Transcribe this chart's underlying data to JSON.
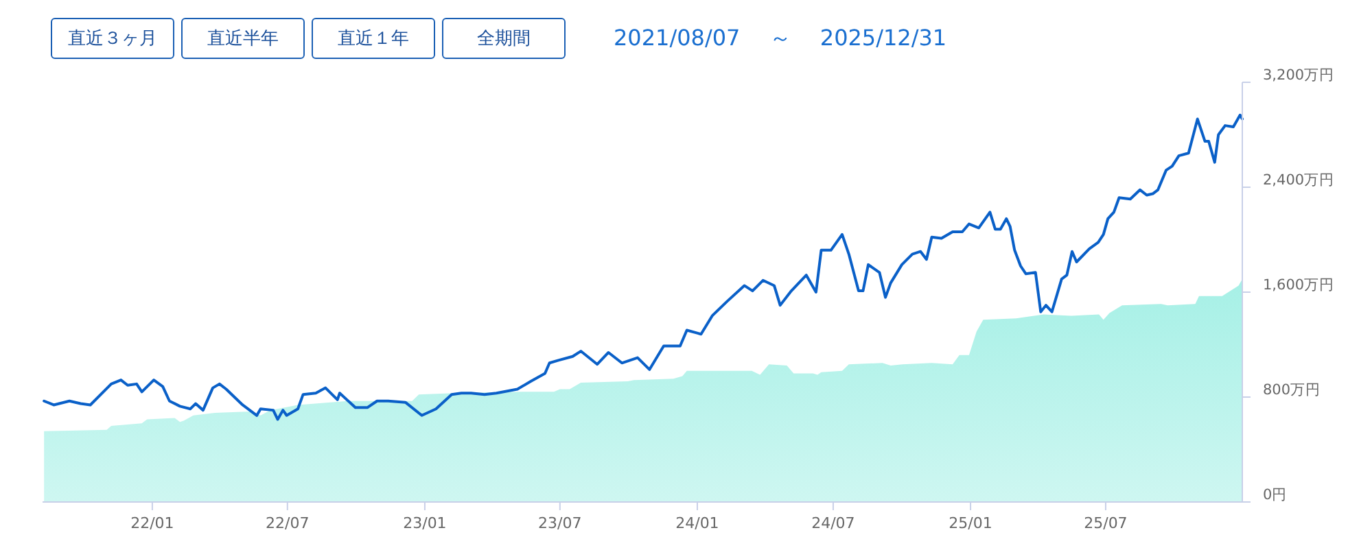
{
  "chart_data": {
    "type": "line",
    "subtitle": "2021/08/07　 ～ 　2025/12/31",
    "annotations": [
      "直近３ヶ月",
      "直近半年",
      "直近１年",
      "全期間"
    ],
    "xlim": [
      "2021-08-07",
      "2025-12-31"
    ],
    "xticks": [
      {
        "value": "2022-01",
        "label": "22/01"
      },
      {
        "value": "2022-07",
        "label": "22/07"
      },
      {
        "value": "2023-01",
        "label": "23/01"
      },
      {
        "value": "2023-07",
        "label": "23/07"
      },
      {
        "value": "2024-01",
        "label": "24/01"
      },
      {
        "value": "2024-07",
        "label": "24/07"
      },
      {
        "value": "2025-01",
        "label": "25/01"
      },
      {
        "value": "2025-07",
        "label": "25/07"
      }
    ],
    "ylim": [
      0,
      3200
    ],
    "yticks": [
      {
        "value": 0,
        "label": "0円"
      },
      {
        "value": 800,
        "label": "800万円"
      },
      {
        "value": 1600,
        "label": "1,600万円"
      },
      {
        "value": 2400,
        "label": "2,400万円"
      },
      {
        "value": 3200,
        "label": "3,200万円"
      }
    ],
    "grid": false,
    "series": [
      {
        "type": "area",
        "color": "#a6f0e6",
        "x": [
          "2021-08-09",
          "2021-11-01",
          "2021-11-07",
          "2021-12-18",
          "2021-12-25",
          "2022-01-31",
          "2022-02-07",
          "2022-02-12",
          "2022-02-25",
          "2022-03-26",
          "2022-05-13",
          "2022-05-26",
          "2022-06-08",
          "2022-07-15",
          "2022-09-20",
          "2022-12-15",
          "2022-12-24",
          "2023-02-09",
          "2023-05-11",
          "2023-06-23",
          "2023-07-01",
          "2023-07-14",
          "2023-07-29",
          "2023-09-30",
          "2023-10-08",
          "2023-11-30",
          "2023-12-12",
          "2023-12-18",
          "2024-03-14",
          "2024-03-25",
          "2024-04-06",
          "2024-04-30",
          "2024-05-09",
          "2024-06-04",
          "2024-06-10",
          "2024-06-15",
          "2024-07-13",
          "2024-07-22",
          "2024-09-05",
          "2024-09-16",
          "2024-10-02",
          "2024-11-10",
          "2024-12-08",
          "2024-12-17",
          "2024-12-30",
          "2025-01-09",
          "2025-01-18",
          "2025-03-03",
          "2025-04-09",
          "2025-05-16",
          "2025-06-22",
          "2025-06-28",
          "2025-07-06",
          "2025-07-23",
          "2025-09-13",
          "2025-09-22",
          "2025-10-29",
          "2025-11-03",
          "2025-12-04",
          "2025-12-26",
          "2025-12-31"
        ],
        "values": [
          540,
          550,
          580,
          600,
          630,
          640,
          610,
          620,
          660,
          680,
          690,
          660,
          700,
          740,
          770,
          770,
          820,
          830,
          840,
          840,
          860,
          860,
          910,
          920,
          930,
          940,
          960,
          1000,
          1000,
          970,
          1050,
          1040,
          980,
          980,
          970,
          990,
          1000,
          1050,
          1060,
          1040,
          1050,
          1060,
          1050,
          1120,
          1120,
          1300,
          1390,
          1400,
          1430,
          1420,
          1430,
          1390,
          1440,
          1500,
          1510,
          1500,
          1510,
          1570,
          1570,
          1650,
          1700
        ]
      },
      {
        "color": "#0a60c8",
        "x": [
          "2021-08-09",
          "2021-08-22",
          "2021-09-12",
          "2021-09-27",
          "2021-10-10",
          "2021-11-07",
          "2021-11-20",
          "2021-11-29",
          "2021-12-11",
          "2021-12-18",
          "2022-01-03",
          "2022-01-15",
          "2022-01-24",
          "2022-02-07",
          "2022-02-21",
          "2022-02-28",
          "2022-03-10",
          "2022-03-23",
          "2022-04-01",
          "2022-04-10",
          "2022-05-02",
          "2022-05-21",
          "2022-05-26",
          "2022-06-12",
          "2022-06-18",
          "2022-06-25",
          "2022-06-30",
          "2022-07-15",
          "2022-07-22",
          "2022-08-08",
          "2022-08-21",
          "2022-09-06",
          "2022-09-09",
          "2022-09-30",
          "2022-10-16",
          "2022-10-29",
          "2022-11-13",
          "2022-12-06",
          "2022-12-28",
          "2023-01-16",
          "2023-02-06",
          "2023-02-19",
          "2023-03-04",
          "2023-03-22",
          "2023-04-07",
          "2023-05-05",
          "2023-05-23",
          "2023-06-11",
          "2023-06-17",
          "2023-06-29",
          "2023-07-18",
          "2023-07-29",
          "2023-08-20",
          "2023-09-04",
          "2023-09-22",
          "2023-10-13",
          "2023-10-29",
          "2023-11-17",
          "2023-12-09",
          "2023-12-18",
          "2024-01-06",
          "2024-01-21",
          "2024-02-10",
          "2024-03-04",
          "2024-03-15",
          "2024-03-29",
          "2024-04-13",
          "2024-04-21",
          "2024-05-06",
          "2024-05-26",
          "2024-06-08",
          "2024-06-15",
          "2024-06-28",
          "2024-07-13",
          "2024-07-22",
          "2024-08-04",
          "2024-08-10",
          "2024-08-17",
          "2024-09-01",
          "2024-09-09",
          "2024-09-16",
          "2024-10-01",
          "2024-10-15",
          "2024-10-26",
          "2024-11-03",
          "2024-11-10",
          "2024-11-23",
          "2024-12-08",
          "2024-12-21",
          "2024-12-30",
          "2025-01-12",
          "2025-01-27",
          "2025-02-03",
          "2025-02-10",
          "2025-02-18",
          "2025-02-23",
          "2025-03-01",
          "2025-03-09",
          "2025-03-16",
          "2025-03-29",
          "2025-04-05",
          "2025-04-12",
          "2025-04-20",
          "2025-05-03",
          "2025-05-10",
          "2025-05-17",
          "2025-05-23",
          "2025-06-09",
          "2025-06-21",
          "2025-06-28",
          "2025-07-04",
          "2025-07-12",
          "2025-07-19",
          "2025-08-03",
          "2025-08-16",
          "2025-08-25",
          "2025-09-02",
          "2025-09-09",
          "2025-09-20",
          "2025-09-28",
          "2025-10-07",
          "2025-10-20",
          "2025-11-01",
          "2025-11-11",
          "2025-11-16",
          "2025-11-24",
          "2025-11-29",
          "2025-12-08",
          "2025-12-19",
          "2025-12-28",
          "2025-12-31"
        ],
        "values": [
          770,
          740,
          770,
          750,
          740,
          900,
          930,
          890,
          900,
          840,
          930,
          880,
          770,
          730,
          710,
          750,
          700,
          870,
          900,
          860,
          740,
          660,
          710,
          700,
          630,
          700,
          660,
          710,
          820,
          830,
          870,
          780,
          830,
          720,
          720,
          770,
          770,
          760,
          660,
          710,
          820,
          830,
          830,
          820,
          830,
          860,
          920,
          980,
          1060,
          1080,
          1110,
          1150,
          1050,
          1140,
          1060,
          1100,
          1010,
          1190,
          1190,
          1310,
          1280,
          1420,
          1530,
          1650,
          1610,
          1690,
          1650,
          1500,
          1610,
          1730,
          1600,
          1920,
          1920,
          2040,
          1890,
          1610,
          1610,
          1810,
          1750,
          1560,
          1670,
          1810,
          1890,
          1910,
          1850,
          2020,
          2010,
          2060,
          2060,
          2120,
          2090,
          2210,
          2080,
          2080,
          2160,
          2100,
          1920,
          1800,
          1740,
          1750,
          1450,
          1500,
          1450,
          1700,
          1730,
          1910,
          1830,
          1930,
          1980,
          2040,
          2160,
          2210,
          2320,
          2310,
          2380,
          2340,
          2350,
          2380,
          2530,
          2560,
          2640,
          2660,
          2920,
          2750,
          2750,
          2590,
          2800,
          2870,
          2860,
          2950,
          2920
        ]
      }
    ]
  }
}
